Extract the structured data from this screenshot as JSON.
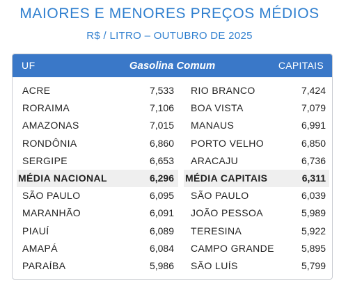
{
  "title": "MAIORES E MENORES PREÇOS MÉDIOS",
  "subtitle": "R$ / LITRO – OUTUBRO DE 2025",
  "header": {
    "uf": "UF",
    "fuel": "Gasolina Comum",
    "capitais": "CAPITAIS"
  },
  "rows": [
    {
      "uf": "ACRE",
      "uf_price": "7,533",
      "capital": "RIO BRANCO",
      "capital_price": "7,424"
    },
    {
      "uf": "RORAIMA",
      "uf_price": "7,106",
      "capital": "BOA VISTA",
      "capital_price": "7,079"
    },
    {
      "uf": "AMAZONAS",
      "uf_price": "7,015",
      "capital": "MANAUS",
      "capital_price": "6,991"
    },
    {
      "uf": "RONDÔNIA",
      "uf_price": "6,860",
      "capital": "PORTO VELHO",
      "capital_price": "6,850"
    },
    {
      "uf": "SERGIPE",
      "uf_price": "6,653",
      "capital": "ARACAJU",
      "capital_price": "6,736"
    },
    {
      "uf": "MÉDIA NACIONAL",
      "uf_price": "6,296",
      "capital": "MÉDIA CAPITAIS",
      "capital_price": "6,311"
    },
    {
      "uf": "SÃO PAULO",
      "uf_price": "6,095",
      "capital": "SÃO PAULO",
      "capital_price": "6,039"
    },
    {
      "uf": "MARANHÃO",
      "uf_price": "6,091",
      "capital": "JOÃO PESSOA",
      "capital_price": "5,989"
    },
    {
      "uf": "PIAUÍ",
      "uf_price": "6,089",
      "capital": "TERESINA",
      "capital_price": "5,922"
    },
    {
      "uf": "AMAPÁ",
      "uf_price": "6,084",
      "capital": "CAMPO GRANDE",
      "capital_price": "5,895"
    },
    {
      "uf": "PARAÍBA",
      "uf_price": "5,986",
      "capital": "SÃO LUÍS",
      "capital_price": "5,799"
    }
  ]
}
